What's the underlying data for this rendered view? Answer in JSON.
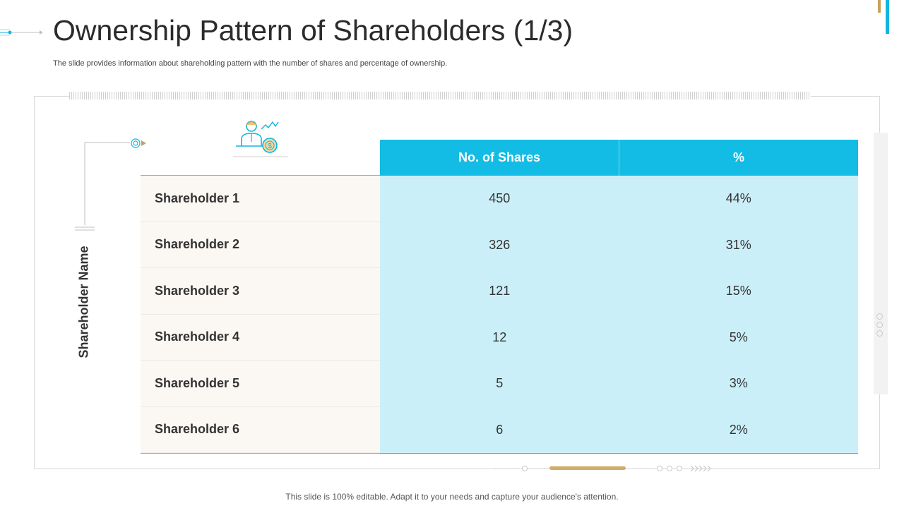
{
  "header": {
    "title": "Ownership Pattern of Shareholders (1/3)",
    "subtitle": "The slide provides information about shareholding pattern with the number of shares and percentage of ownership."
  },
  "table": {
    "row_axis_label": "Shareholder Name",
    "columns": [
      "No. of Shares",
      "%"
    ],
    "rows": [
      {
        "name": "Shareholder 1",
        "shares": "450",
        "percent": "44%"
      },
      {
        "name": "Shareholder 2",
        "shares": "326",
        "percent": "31%"
      },
      {
        "name": "Shareholder 3",
        "shares": "121",
        "percent": "15%"
      },
      {
        "name": "Shareholder 4",
        "shares": "12",
        "percent": "5%"
      },
      {
        "name": "Shareholder 5",
        "shares": "5",
        "percent": "3%"
      },
      {
        "name": "Shareholder 6",
        "shares": "6",
        "percent": "2%"
      }
    ]
  },
  "icons": {
    "header_icon": "investor-dollar-icon",
    "target_icon": "target-arrow-icon"
  },
  "colors": {
    "accent_blue": "#12bce4",
    "light_blue": "#cbeff9",
    "gold": "#c9a15b",
    "row_bg": "#fbf8f3"
  },
  "footer": {
    "text": "This slide is 100% editable. Adapt it to your needs and capture your audience's attention."
  }
}
